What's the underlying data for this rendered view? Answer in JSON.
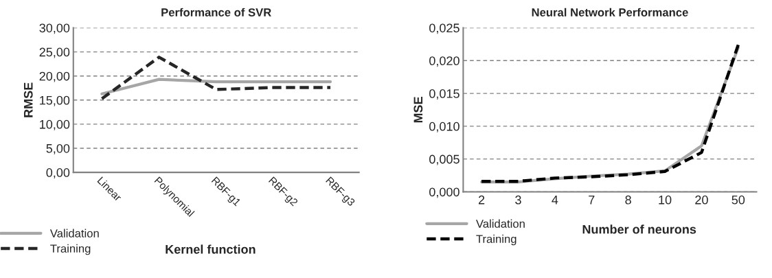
{
  "chart_data": [
    {
      "type": "line",
      "title": "Performance of SVR",
      "xlabel": "Kernel function",
      "ylabel": "RMSE",
      "categories": [
        "Linear",
        "Polynomial",
        "RBF-g1",
        "RBF-g2",
        "RBF-g3"
      ],
      "series": [
        {
          "name": "Validation",
          "color": "#a6a6a6",
          "line_style": "solid",
          "values": [
            16.3,
            19.3,
            18.8,
            18.8,
            18.8
          ]
        },
        {
          "name": "Training",
          "color": "#262626",
          "line_style": "dashed",
          "values": [
            15.3,
            23.9,
            17.2,
            17.6,
            17.6
          ]
        }
      ],
      "ylim": [
        0,
        30
      ],
      "yticks": [
        {
          "value": 0,
          "label": "0,00"
        },
        {
          "value": 5,
          "label": "5,00"
        },
        {
          "value": 10,
          "label": "10,00"
        },
        {
          "value": 15,
          "label": "15,00"
        },
        {
          "value": 20,
          "label": "20,00"
        },
        {
          "value": 25,
          "label": "25,00"
        },
        {
          "value": 30,
          "label": "30,00"
        }
      ],
      "grid": "y",
      "legend": "bottom left",
      "marker": "none"
    },
    {
      "type": "line",
      "title": "Neural Network Performance",
      "xlabel": "Number of neurons",
      "ylabel": "MSE",
      "categories": [
        "2",
        "3",
        "4",
        "7",
        "8",
        "10",
        "20",
        "50"
      ],
      "series": [
        {
          "name": "Validation",
          "color": "#a6a6a6",
          "line_style": "solid",
          "values": [
            0.0015,
            0.0015,
            0.002,
            0.0024,
            0.0027,
            0.0032,
            0.007,
            0.022
          ]
        },
        {
          "name": "Training",
          "color": "#000000",
          "line_style": "dashed",
          "values": [
            0.0016,
            0.0016,
            0.0021,
            0.0023,
            0.0026,
            0.0031,
            0.006,
            0.0224
          ]
        }
      ],
      "ylim": [
        0,
        0.025
      ],
      "yticks": [
        {
          "value": 0,
          "label": "0,000"
        },
        {
          "value": 0.005,
          "label": "0,005"
        },
        {
          "value": 0.01,
          "label": "0,010"
        },
        {
          "value": 0.015,
          "label": "0,015"
        },
        {
          "value": 0.02,
          "label": "0,020"
        },
        {
          "value": 0.025,
          "label": "0,025"
        }
      ],
      "grid": "y",
      "legend": "bottom left",
      "marker": "none"
    }
  ]
}
